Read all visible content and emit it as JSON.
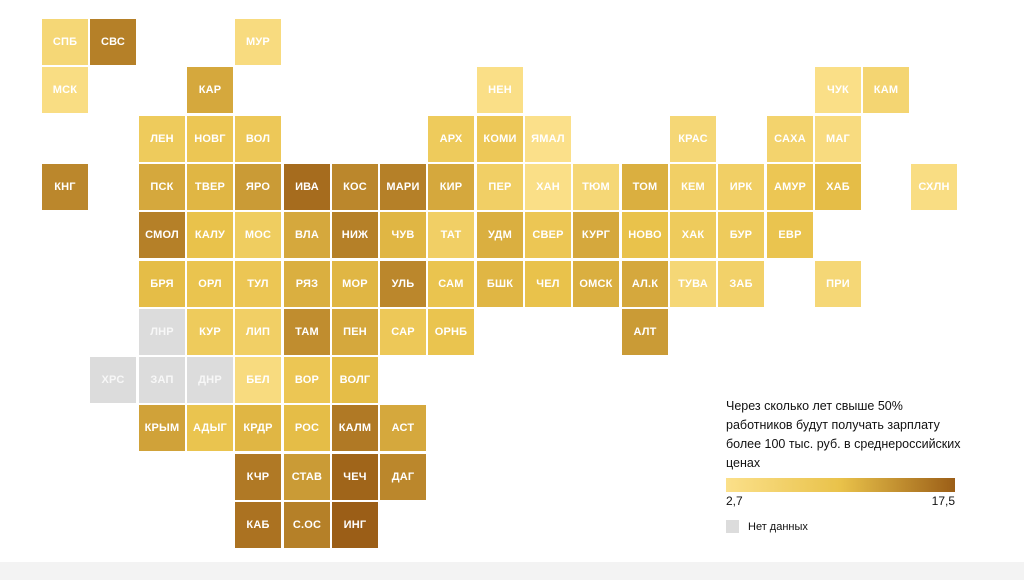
{
  "legend": {
    "title": "Через сколько лет свыше 50% работников будут получать зарплату более 100 тыс. руб. в среднероссийских ценах",
    "min_label": "2,7",
    "max_label": "17,5",
    "min": 2.7,
    "max": 17.5,
    "color_low": "#fbe08a",
    "color_mid": "#e9c24a",
    "color_high": "#9b5e17",
    "nodata_label": "Нет данных",
    "nodata_color": "#dcdcdc"
  },
  "regions": [
    {
      "code": "СПБ",
      "col": 0,
      "row": 0,
      "value": 5.0
    },
    {
      "code": "СВС",
      "col": 1,
      "row": 0,
      "value": 15.0
    },
    {
      "code": "МУР",
      "col": 4,
      "row": 0,
      "value": 4.0
    },
    {
      "code": "МСК",
      "col": 0,
      "row": 1,
      "value": 3.5
    },
    {
      "code": "КАР",
      "col": 3,
      "row": 1,
      "value": 12.0
    },
    {
      "code": "НЕН",
      "col": 9,
      "row": 1,
      "value": 3.0
    },
    {
      "code": "ЧУК",
      "col": 16,
      "row": 1,
      "value": 3.0
    },
    {
      "code": "КАМ",
      "col": 17,
      "row": 1,
      "value": 5.5
    },
    {
      "code": "ЛЕН",
      "col": 2,
      "row": 2,
      "value": 8.0
    },
    {
      "code": "НОВГ",
      "col": 3,
      "row": 2,
      "value": 9.0
    },
    {
      "code": "ВОЛ",
      "col": 4,
      "row": 2,
      "value": 8.5
    },
    {
      "code": "АРХ",
      "col": 8,
      "row": 2,
      "value": 8.0
    },
    {
      "code": "КОМИ",
      "col": 9,
      "row": 2,
      "value": 8.5
    },
    {
      "code": "ЯМАЛ",
      "col": 10,
      "row": 2,
      "value": 2.7
    },
    {
      "code": "КРАС",
      "col": 13,
      "row": 2,
      "value": 5.0
    },
    {
      "code": "САХА",
      "col": 15,
      "row": 2,
      "value": 6.0
    },
    {
      "code": "МАГ",
      "col": 16,
      "row": 2,
      "value": 4.0
    },
    {
      "code": "КНГ",
      "col": 0,
      "row": 3,
      "value": 14.5
    },
    {
      "code": "ПСК",
      "col": 2,
      "row": 3,
      "value": 12.0
    },
    {
      "code": "ТВЕР",
      "col": 3,
      "row": 3,
      "value": 11.0
    },
    {
      "code": "ЯРО",
      "col": 4,
      "row": 3,
      "value": 13.0
    },
    {
      "code": "ИВА",
      "col": 5,
      "row": 3,
      "value": 16.5
    },
    {
      "code": "КОС",
      "col": 6,
      "row": 3,
      "value": 14.5
    },
    {
      "code": "МАРИ",
      "col": 7,
      "row": 3,
      "value": 15.0
    },
    {
      "code": "КИР",
      "col": 8,
      "row": 3,
      "value": 12.0
    },
    {
      "code": "ПЕР",
      "col": 9,
      "row": 3,
      "value": 7.0
    },
    {
      "code": "ХАН",
      "col": 10,
      "row": 3,
      "value": 3.0
    },
    {
      "code": "ТЮМ",
      "col": 11,
      "row": 3,
      "value": 5.0
    },
    {
      "code": "ТОМ",
      "col": 12,
      "row": 3,
      "value": 11.5
    },
    {
      "code": "КЕМ",
      "col": 13,
      "row": 3,
      "value": 7.0
    },
    {
      "code": "ИРК",
      "col": 14,
      "row": 3,
      "value": 7.0
    },
    {
      "code": "АМУР",
      "col": 15,
      "row": 3,
      "value": 9.0
    },
    {
      "code": "ХАБ",
      "col": 16,
      "row": 3,
      "value": 10.5
    },
    {
      "code": "СХЛН",
      "col": 18,
      "row": 3,
      "value": 3.5
    },
    {
      "code": "СМОЛ",
      "col": 2,
      "row": 4,
      "value": 15.0
    },
    {
      "code": "КАЛУ",
      "col": 3,
      "row": 4,
      "value": 10.0
    },
    {
      "code": "МОС",
      "col": 4,
      "row": 4,
      "value": 7.5
    },
    {
      "code": "ВЛА",
      "col": 5,
      "row": 4,
      "value": 12.0
    },
    {
      "code": "НИЖ",
      "col": 6,
      "row": 4,
      "value": 15.0
    },
    {
      "code": "ЧУВ",
      "col": 7,
      "row": 4,
      "value": 11.0
    },
    {
      "code": "ТАТ",
      "col": 8,
      "row": 4,
      "value": 7.0
    },
    {
      "code": "УДМ",
      "col": 9,
      "row": 4,
      "value": 11.5
    },
    {
      "code": "СВЕР",
      "col": 10,
      "row": 4,
      "value": 9.0
    },
    {
      "code": "КУРГ",
      "col": 11,
      "row": 4,
      "value": 12.0
    },
    {
      "code": "НОВО",
      "col": 12,
      "row": 4,
      "value": 10.0
    },
    {
      "code": "ХАК",
      "col": 13,
      "row": 4,
      "value": 8.0
    },
    {
      "code": "БУР",
      "col": 14,
      "row": 4,
      "value": 8.0
    },
    {
      "code": "ЕВР",
      "col": 15,
      "row": 4,
      "value": 9.5
    },
    {
      "code": "БРЯ",
      "col": 2,
      "row": 5,
      "value": 10.5
    },
    {
      "code": "ОРЛ",
      "col": 3,
      "row": 5,
      "value": 9.5
    },
    {
      "code": "ТУЛ",
      "col": 4,
      "row": 5,
      "value": 9.0
    },
    {
      "code": "РЯЗ",
      "col": 5,
      "row": 5,
      "value": 11.5
    },
    {
      "code": "МОР",
      "col": 6,
      "row": 5,
      "value": 11.0
    },
    {
      "code": "УЛЬ",
      "col": 7,
      "row": 5,
      "value": 14.5
    },
    {
      "code": "САМ",
      "col": 8,
      "row": 5,
      "value": 9.5
    },
    {
      "code": "БШК",
      "col": 9,
      "row": 5,
      "value": 11.0
    },
    {
      "code": "ЧЕЛ",
      "col": 10,
      "row": 5,
      "value": 10.0
    },
    {
      "code": "ОМСК",
      "col": 11,
      "row": 5,
      "value": 11.5
    },
    {
      "code": "АЛ.К",
      "col": 12,
      "row": 5,
      "value": 12.0
    },
    {
      "code": "ТУВА",
      "col": 13,
      "row": 5,
      "value": 5.0
    },
    {
      "code": "ЗАБ",
      "col": 14,
      "row": 5,
      "value": 6.5
    },
    {
      "code": "ПРИ",
      "col": 16,
      "row": 5,
      "value": 5.0
    },
    {
      "code": "ЛНР",
      "col": 2,
      "row": 6,
      "value": null
    },
    {
      "code": "КУР",
      "col": 3,
      "row": 6,
      "value": 8.0
    },
    {
      "code": "ЛИП",
      "col": 4,
      "row": 6,
      "value": 7.0
    },
    {
      "code": "ТАМ",
      "col": 5,
      "row": 6,
      "value": 14.0
    },
    {
      "code": "ПЕН",
      "col": 6,
      "row": 6,
      "value": 12.0
    },
    {
      "code": "САР",
      "col": 7,
      "row": 6,
      "value": 8.5
    },
    {
      "code": "ОРНБ",
      "col": 8,
      "row": 6,
      "value": 9.5
    },
    {
      "code": "АЛТ",
      "col": 12,
      "row": 6,
      "value": 13.0
    },
    {
      "code": "ХРС",
      "col": 1,
      "row": 7,
      "value": null
    },
    {
      "code": "ЗАП",
      "col": 2,
      "row": 7,
      "value": null
    },
    {
      "code": "ДНР",
      "col": 3,
      "row": 7,
      "value": null
    },
    {
      "code": "БЕЛ",
      "col": 4,
      "row": 7,
      "value": 4.0
    },
    {
      "code": "ВОР",
      "col": 5,
      "row": 7,
      "value": 9.0
    },
    {
      "code": "ВОЛГ",
      "col": 6,
      "row": 7,
      "value": 10.5
    },
    {
      "code": "КРЫМ",
      "col": 2,
      "row": 8,
      "value": 12.5
    },
    {
      "code": "АДЫГ",
      "col": 3,
      "row": 8,
      "value": 9.5
    },
    {
      "code": "КРДР",
      "col": 4,
      "row": 8,
      "value": 11.0
    },
    {
      "code": "РОС",
      "col": 5,
      "row": 8,
      "value": 10.5
    },
    {
      "code": "КАЛМ",
      "col": 6,
      "row": 8,
      "value": 15.5
    },
    {
      "code": "АСТ",
      "col": 7,
      "row": 8,
      "value": 12.0
    },
    {
      "code": "КЧР",
      "col": 4,
      "row": 9,
      "value": 15.5
    },
    {
      "code": "СТАВ",
      "col": 5,
      "row": 9,
      "value": 13.0
    },
    {
      "code": "ЧЕЧ",
      "col": 6,
      "row": 9,
      "value": 17.0
    },
    {
      "code": "ДАГ",
      "col": 7,
      "row": 9,
      "value": 14.5
    },
    {
      "code": "КАБ",
      "col": 4,
      "row": 10,
      "value": 16.0
    },
    {
      "code": "С.ОС",
      "col": 5,
      "row": 10,
      "value": 15.0
    },
    {
      "code": "ИНГ",
      "col": 6,
      "row": 10,
      "value": 17.5
    }
  ]
}
